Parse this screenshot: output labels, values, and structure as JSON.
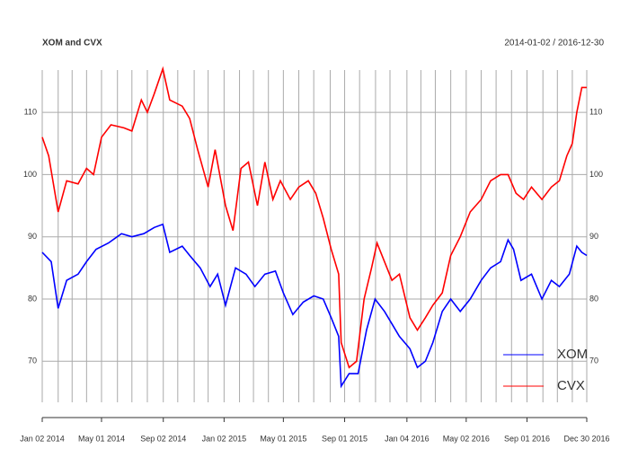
{
  "chart_data": {
    "type": "line",
    "title": "XOM and CVX",
    "subtitle": "2014-01-02 / 2016-12-30",
    "xlim": [
      "2014-01-02",
      "2016-12-30"
    ],
    "ylim": [
      63.4,
      116.8
    ],
    "yticks": [
      70,
      80,
      90,
      100,
      110
    ],
    "xticks": [
      {
        "value": "2014-01-02",
        "label": "Jan 02 2014"
      },
      {
        "value": "2014-05-01",
        "label": "May 01 2014"
      },
      {
        "value": "2014-09-02",
        "label": "Sep 02 2014"
      },
      {
        "value": "2015-01-02",
        "label": "Jan 02 2015"
      },
      {
        "value": "2015-05-01",
        "label": "May 01 2015"
      },
      {
        "value": "2015-09-01",
        "label": "Sep 01 2015"
      },
      {
        "value": "2016-01-04",
        "label": "Jan 04 2016"
      },
      {
        "value": "2016-05-02",
        "label": "May 02 2016"
      },
      {
        "value": "2016-09-01",
        "label": "Sep 01 2016"
      },
      {
        "value": "2016-12-30",
        "label": "Dec 30 2016"
      }
    ],
    "xgrid": [
      "2014-02-03",
      "2014-03-03",
      "2014-04-01",
      "2014-06-02",
      "2014-07-01",
      "2014-08-01",
      "2014-10-01",
      "2014-11-03",
      "2014-12-01",
      "2015-02-02",
      "2015-03-02",
      "2015-04-01",
      "2015-06-01",
      "2015-07-01",
      "2015-08-03",
      "2015-10-01",
      "2015-11-02",
      "2015-12-01",
      "2016-02-01",
      "2016-03-01",
      "2016-04-01",
      "2016-06-01",
      "2016-07-01",
      "2016-08-01",
      "2016-10-03",
      "2016-11-01",
      "2016-12-01"
    ],
    "grid": true,
    "legend": "bottom-right",
    "series": [
      {
        "name": "XOM",
        "color": "#0000ff",
        "x": [
          "2014-01-02",
          "2014-01-20",
          "2014-02-03",
          "2014-02-20",
          "2014-03-15",
          "2014-04-01",
          "2014-04-20",
          "2014-05-15",
          "2014-06-10",
          "2014-07-01",
          "2014-07-25",
          "2014-08-15",
          "2014-09-01",
          "2014-09-15",
          "2014-10-10",
          "2014-10-25",
          "2014-11-15",
          "2014-12-05",
          "2014-12-20",
          "2015-01-05",
          "2015-01-25",
          "2015-02-15",
          "2015-03-05",
          "2015-03-25",
          "2015-04-15",
          "2015-05-01",
          "2015-05-20",
          "2015-06-10",
          "2015-07-01",
          "2015-07-20",
          "2015-08-05",
          "2015-08-20",
          "2015-08-25",
          "2015-09-10",
          "2015-09-28",
          "2015-10-15",
          "2015-11-01",
          "2015-11-20",
          "2015-12-05",
          "2015-12-20",
          "2016-01-10",
          "2016-01-25",
          "2016-02-10",
          "2016-02-25",
          "2016-03-15",
          "2016-04-01",
          "2016-04-20",
          "2016-05-10",
          "2016-06-01",
          "2016-06-20",
          "2016-07-10",
          "2016-07-25",
          "2016-08-05",
          "2016-08-20",
          "2016-09-10",
          "2016-10-01",
          "2016-10-20",
          "2016-11-05",
          "2016-11-25",
          "2016-12-10",
          "2016-12-20",
          "2016-12-30"
        ],
        "values": [
          87.5,
          86,
          78.5,
          83,
          84,
          86,
          88,
          89,
          90.5,
          90,
          90.5,
          91.5,
          92,
          87.5,
          88.5,
          87,
          85,
          82,
          84,
          79,
          85,
          84,
          82,
          84,
          84.5,
          81,
          77.5,
          79.5,
          80.5,
          80,
          77,
          74,
          66,
          68,
          68,
          75,
          80,
          78,
          76,
          74,
          72,
          69,
          70,
          73,
          78,
          80,
          78,
          80,
          83,
          85,
          86,
          89.5,
          88,
          83,
          84,
          80,
          83,
          82,
          84,
          88.5,
          87.5,
          87
        ]
      },
      {
        "name": "CVX",
        "color": "#ff0000",
        "x": [
          "2014-01-02",
          "2014-01-15",
          "2014-02-03",
          "2014-02-20",
          "2014-03-15",
          "2014-04-01",
          "2014-04-15",
          "2014-05-01",
          "2014-05-20",
          "2014-06-15",
          "2014-07-01",
          "2014-07-20",
          "2014-08-01",
          "2014-08-15",
          "2014-09-01",
          "2014-09-15",
          "2014-10-10",
          "2014-10-25",
          "2014-11-10",
          "2014-12-01",
          "2014-12-15",
          "2015-01-05",
          "2015-01-20",
          "2015-02-05",
          "2015-02-20",
          "2015-03-10",
          "2015-03-25",
          "2015-04-10",
          "2015-04-25",
          "2015-05-15",
          "2015-06-01",
          "2015-06-20",
          "2015-07-05",
          "2015-07-20",
          "2015-08-05",
          "2015-08-20",
          "2015-08-25",
          "2015-09-10",
          "2015-09-25",
          "2015-10-10",
          "2015-10-25",
          "2015-11-05",
          "2015-11-20",
          "2015-12-05",
          "2015-12-20",
          "2016-01-10",
          "2016-01-25",
          "2016-02-10",
          "2016-02-25",
          "2016-03-15",
          "2016-04-01",
          "2016-04-20",
          "2016-05-10",
          "2016-06-01",
          "2016-06-20",
          "2016-07-10",
          "2016-07-25",
          "2016-08-10",
          "2016-08-25",
          "2016-09-10",
          "2016-10-01",
          "2016-10-20",
          "2016-11-05",
          "2016-11-20",
          "2016-12-01",
          "2016-12-10",
          "2016-12-20",
          "2016-12-30"
        ],
        "values": [
          106,
          103,
          94,
          99,
          98.5,
          101,
          100,
          106,
          108,
          107.5,
          107,
          112,
          110,
          113,
          117,
          112,
          111,
          109,
          104,
          98,
          104,
          95,
          91,
          101,
          102,
          95,
          102,
          96,
          99,
          96,
          98,
          99,
          97,
          93,
          88,
          84,
          73,
          69,
          70,
          80,
          85,
          89,
          86,
          83,
          84,
          77,
          75,
          77,
          79,
          81,
          87,
          90,
          94,
          96,
          99,
          100,
          100,
          97,
          96,
          98,
          96,
          98,
          99,
          103,
          105,
          110,
          114,
          114
        ]
      }
    ]
  }
}
